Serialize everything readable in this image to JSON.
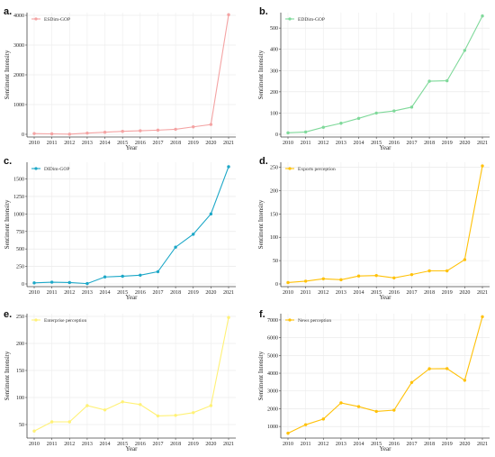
{
  "chart_data": [
    {
      "panel": "a.",
      "type": "line",
      "x": [
        2010,
        2011,
        2012,
        2013,
        2014,
        2015,
        2016,
        2017,
        2018,
        2019,
        2020,
        2021
      ],
      "series": [
        {
          "name": "ESDim-GOP",
          "values": [
            25,
            15,
            5,
            40,
            70,
            100,
            120,
            140,
            170,
            250,
            330,
            4020
          ],
          "color": "#f4a3a3"
        }
      ],
      "xlabel": "Year",
      "ylabel": "Sentiment Intensity",
      "ylim": [
        0,
        4000
      ],
      "yticks": [
        0,
        1000,
        2000,
        3000,
        4000
      ],
      "grid": true,
      "legend": "top-left"
    },
    {
      "panel": "b.",
      "type": "line",
      "x": [
        2010,
        2011,
        2012,
        2013,
        2014,
        2015,
        2016,
        2017,
        2018,
        2019,
        2020,
        2021
      ],
      "series": [
        {
          "name": "EDDim-GOP",
          "values": [
            7,
            11,
            33,
            52,
            75,
            100,
            110,
            128,
            250,
            252,
            395,
            557
          ],
          "color": "#7fd99a"
        }
      ],
      "xlabel": "Year",
      "ylabel": "Sentiment Intensity",
      "ylim": [
        0,
        560
      ],
      "yticks": [
        0,
        100,
        200,
        300,
        400,
        500
      ],
      "grid": true,
      "legend": "top-left"
    },
    {
      "panel": "c.",
      "type": "line",
      "x": [
        2010,
        2011,
        2012,
        2013,
        2014,
        2015,
        2016,
        2017,
        2018,
        2019,
        2020,
        2021
      ],
      "series": [
        {
          "name": "DIDim-GOP",
          "values": [
            15,
            25,
            20,
            5,
            100,
            110,
            125,
            175,
            525,
            710,
            1000,
            1675
          ],
          "color": "#1ca7c7"
        }
      ],
      "xlabel": "Year",
      "ylabel": "Sentiment Intensity",
      "ylim": [
        0,
        1700
      ],
      "yticks": [
        0,
        250,
        500,
        750,
        1000,
        1250,
        1500
      ],
      "grid": true,
      "legend": "top-left"
    },
    {
      "panel": "d.",
      "type": "line",
      "x": [
        2010,
        2011,
        2012,
        2013,
        2014,
        2015,
        2016,
        2017,
        2018,
        2019,
        2020,
        2021
      ],
      "series": [
        {
          "name": "Exports perception",
          "values": [
            3,
            6,
            11,
            9,
            17,
            18,
            13,
            20,
            28,
            28,
            52,
            253
          ],
          "color": "#ffc107"
        }
      ],
      "xlabel": "Year",
      "ylabel": "Sentiment Intensity",
      "ylim": [
        0,
        255
      ],
      "yticks": [
        0,
        50,
        100,
        150,
        200,
        250
      ],
      "grid": true,
      "legend": "top-left"
    },
    {
      "panel": "e.",
      "type": "line",
      "x": [
        2010,
        2011,
        2012,
        2013,
        2014,
        2015,
        2016,
        2017,
        2018,
        2019,
        2020,
        2021
      ],
      "series": [
        {
          "name": "Enterprise perception",
          "values": [
            38,
            55,
            55,
            85,
            77,
            92,
            87,
            66,
            67,
            72,
            85,
            248
          ],
          "color": "#fff176"
        }
      ],
      "xlabel": "Year",
      "ylabel": "Sentiment Intensity",
      "ylim": [
        30,
        250
      ],
      "yticks": [
        50,
        100,
        150,
        200,
        250
      ],
      "grid": true,
      "legend": "top-left"
    },
    {
      "panel": "f.",
      "type": "line",
      "x": [
        2010,
        2011,
        2012,
        2013,
        2014,
        2015,
        2016,
        2017,
        2018,
        2019,
        2020,
        2021
      ],
      "series": [
        {
          "name": "News perception",
          "values": [
            620,
            1100,
            1420,
            2330,
            2120,
            1850,
            1920,
            3480,
            4250,
            4260,
            3600,
            7180
          ],
          "color": "#ffc107"
        }
      ],
      "xlabel": "Year",
      "ylabel": "Sentiment Intensity",
      "ylim": [
        500,
        7200
      ],
      "yticks": [
        1000,
        2000,
        3000,
        4000,
        5000,
        6000,
        7000
      ],
      "grid": true,
      "legend": "top-left"
    }
  ]
}
